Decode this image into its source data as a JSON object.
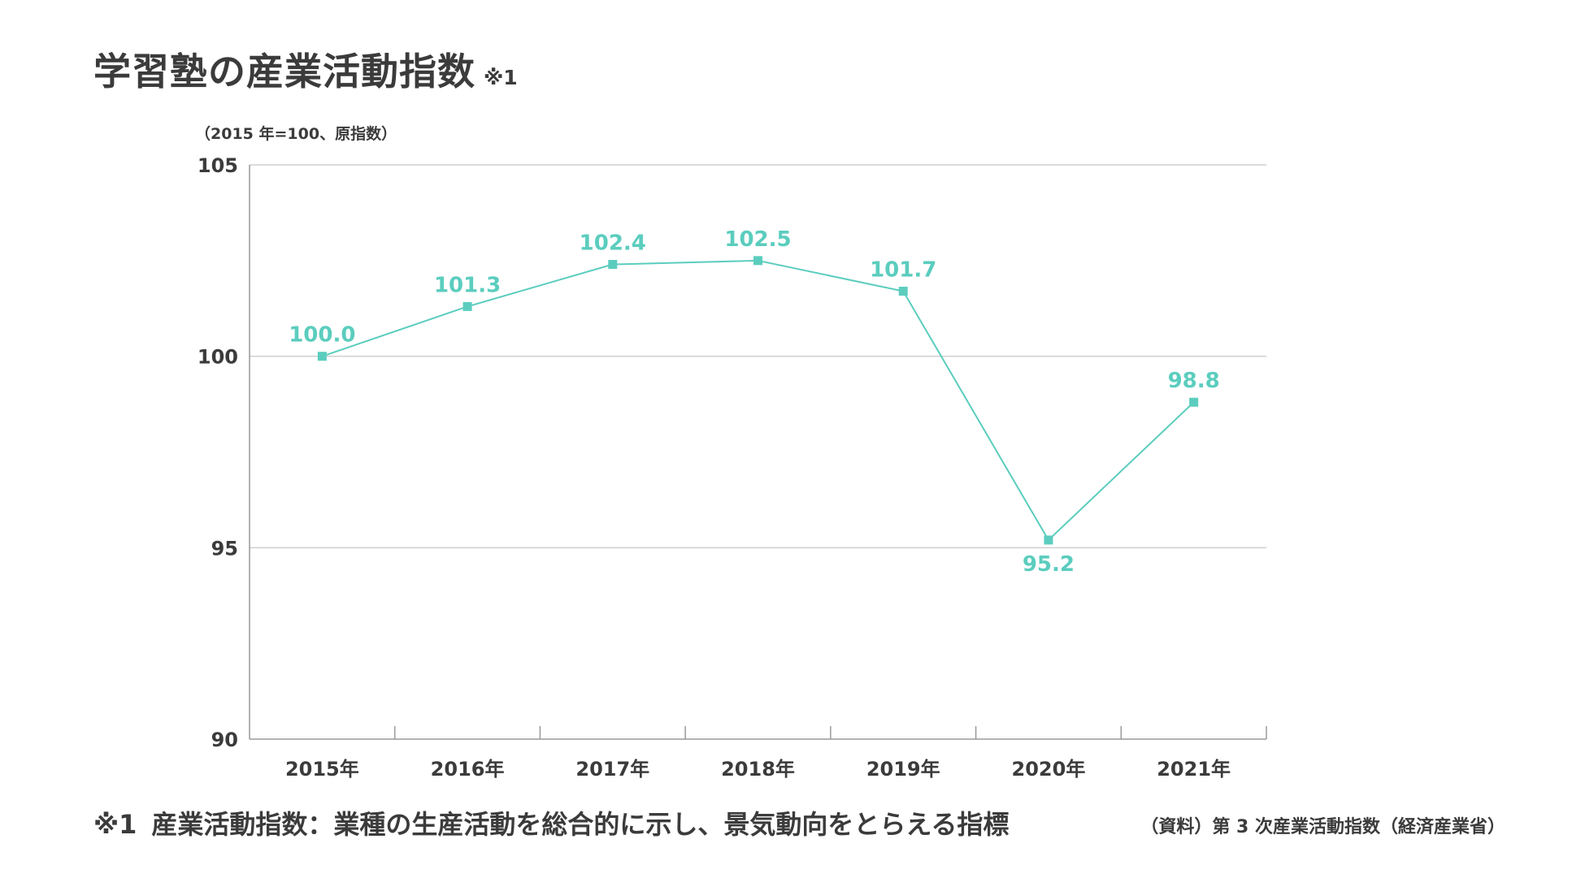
{
  "title": "学習塾の産業活動指数",
  "title_note": "※1",
  "unit_label": "（2015 年=100、原指数）",
  "footnote": {
    "mark": "※1",
    "text": "産業活動指数：業種の生産活動を総合的に示し、景気動向をとらえる指標"
  },
  "source": "（資料）第 3 次産業活動指数（経済産業省）",
  "colors": {
    "series": "#5bcdbe",
    "grid": "#cfcfcf",
    "axis": "#9a9a9a",
    "text": "#3b3b3b"
  },
  "chart_data": {
    "type": "line",
    "categories": [
      "2015年",
      "2016年",
      "2017年",
      "2018年",
      "2019年",
      "2020年",
      "2021年"
    ],
    "series": [
      {
        "values": [
          100.0,
          101.3,
          102.4,
          102.5,
          101.7,
          95.2,
          98.8
        ],
        "labels": [
          "100.0",
          "101.3",
          "102.4",
          "102.5",
          "101.7",
          "95.2",
          "98.8"
        ],
        "marker": "square"
      }
    ],
    "ylim": [
      90,
      105
    ],
    "yticks": [
      90,
      95,
      100,
      105
    ],
    "ytick_labels": [
      "90",
      "95",
      "100",
      "105"
    ],
    "grid": true,
    "legend": "none"
  }
}
